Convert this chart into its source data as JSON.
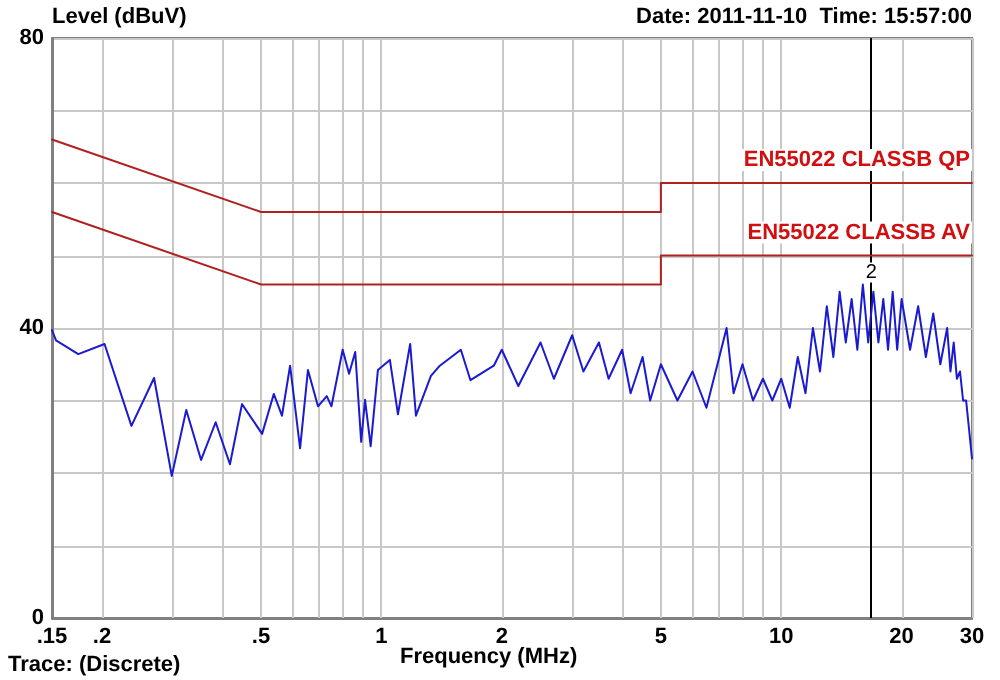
{
  "chart_data": {
    "type": "line",
    "ylabel": "Level (dBuV)",
    "xlabel": "Frequency (MHz)",
    "annotations": [
      "Date: 2011-11-10  Time: 15:57:00",
      "Trace: (Discrete)",
      {
        "text": "2",
        "x": 16.8,
        "y": 46
      }
    ],
    "log": "x",
    "grid": true,
    "marker": "none",
    "line_style": "solid",
    "xlim": [
      0.15,
      30
    ],
    "xticks": [
      {
        "value": 0.15,
        "label": ".15"
      },
      {
        "value": 0.2,
        "label": ".2"
      },
      {
        "value": 0.3,
        "label": null
      },
      {
        "value": 0.4,
        "label": null
      },
      {
        "value": 0.5,
        "label": ".5"
      },
      {
        "value": 0.6,
        "label": null
      },
      {
        "value": 0.7,
        "label": null
      },
      {
        "value": 0.8,
        "label": null
      },
      {
        "value": 0.9,
        "label": null
      },
      1,
      2,
      {
        "value": 3,
        "label": null
      },
      {
        "value": 4,
        "label": null
      },
      5,
      {
        "value": 6,
        "label": null
      },
      {
        "value": 7,
        "label": null
      },
      {
        "value": 8,
        "label": null
      },
      {
        "value": 9,
        "label": null
      },
      10,
      20,
      30
    ],
    "ylim": [
      0,
      80
    ],
    "yticks": [
      0,
      {
        "value": 10,
        "label": null
      },
      {
        "value": 20,
        "label": null
      },
      {
        "value": 30,
        "label": null
      },
      40,
      {
        "value": 50,
        "label": null
      },
      {
        "value": 60,
        "label": null
      },
      {
        "value": 70,
        "label": null
      },
      80
    ],
    "series": [
      {
        "name": "EN55022 CLASSB QP",
        "color": "#b02020",
        "x": [
          0.15,
          0.5,
          5,
          5,
          30
        ],
        "values": [
          66,
          56,
          56,
          60,
          60
        ]
      },
      {
        "name": "EN55022 CLASSB AV",
        "color": "#b02020",
        "x": [
          0.15,
          0.5,
          5,
          5,
          30
        ],
        "values": [
          56,
          46,
          46,
          50,
          50
        ]
      },
      {
        "color": "#1a1ad0",
        "x": [
          0.15,
          0.1535,
          0.1745,
          0.203,
          0.237,
          0.27,
          0.299,
          0.325,
          0.354,
          0.385,
          0.418,
          0.448,
          0.503,
          0.538,
          0.564,
          0.591,
          0.626,
          0.655,
          0.694,
          0.73,
          0.75,
          0.8,
          0.83,
          0.86,
          0.89,
          0.91,
          0.94,
          0.98,
          1.05,
          1.1,
          1.18,
          1.22,
          1.33,
          1.4,
          1.58,
          1.67,
          1.91,
          2,
          2.2,
          2.5,
          2.7,
          3,
          3.2,
          3.5,
          3.7,
          4,
          4.2,
          4.5,
          4.7,
          5,
          5.5,
          6,
          6.5,
          7,
          7.3,
          7.6,
          8,
          8.5,
          9,
          9.5,
          10,
          10.5,
          11,
          11.5,
          12,
          12.5,
          13,
          13.5,
          14,
          14.5,
          15,
          15.5,
          16,
          16.5,
          17,
          17.5,
          18,
          18.5,
          19,
          19.5,
          20,
          21,
          22,
          23,
          24,
          25,
          26,
          26.5,
          27,
          27.5,
          28,
          28.5,
          29,
          29.5,
          30
        ],
        "values": [
          39.7,
          38.3,
          36.4,
          37.8,
          26.5,
          33.1,
          19.6,
          28.7,
          21.8,
          27,
          21.2,
          29.5,
          25.4,
          30.9,
          27.9,
          34.8,
          23.4,
          34.2,
          29.2,
          30.6,
          29.2,
          37,
          33.7,
          36.7,
          24.3,
          30.1,
          23.7,
          34.2,
          35.6,
          28.1,
          37.8,
          27.9,
          33.4,
          34.8,
          37,
          32.8,
          34.8,
          37,
          32,
          38,
          33,
          39,
          34,
          38,
          33,
          37,
          31,
          36,
          30,
          35,
          30,
          34,
          29,
          36,
          40,
          31,
          35,
          30,
          33,
          30,
          33,
          29,
          36,
          31,
          40,
          34,
          43,
          36,
          45,
          38,
          44,
          37,
          46,
          38,
          45,
          38,
          44,
          37,
          45,
          37,
          44,
          37,
          43,
          36,
          42,
          35,
          40,
          34,
          38,
          33,
          34,
          30,
          30,
          26,
          22
        ]
      }
    ],
    "ref_lines": [
      {
        "axis": "x",
        "value": 16.8,
        "color": "#000000"
      }
    ]
  }
}
